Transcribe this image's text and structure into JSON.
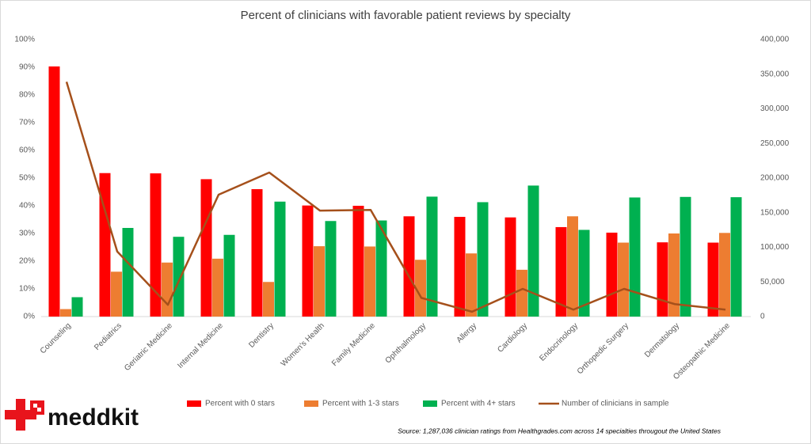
{
  "chart_data": {
    "type": "bar",
    "title": "Percent of clinicians with favorable patient reviews by specialty",
    "categories": [
      "Counseling",
      "Pediatrics",
      "Geriatric Medicine",
      "Internal Medicine",
      "Dentistry",
      "Women's Health",
      "Family Medicine",
      "Ophthalmology",
      "Allergy",
      "Cardiology",
      "Endocrinology",
      "Orthopedic Surgery",
      "Dermatology",
      "Osteopathic Medicine"
    ],
    "series": [
      {
        "name": "Percent with 0 stars",
        "color": "#ff0000",
        "values": [
          90.3,
          51.8,
          51.7,
          49.6,
          46.0,
          40.1,
          40.0,
          36.2,
          36.0,
          35.8,
          32.3,
          30.3,
          26.8,
          26.7
        ]
      },
      {
        "name": "Percent with 1-3 stars",
        "color": "#ed7d31",
        "values": [
          2.7,
          16.2,
          19.5,
          20.9,
          12.5,
          25.4,
          25.3,
          20.5,
          22.8,
          16.9,
          36.2,
          26.7,
          30.0,
          30.2
        ]
      },
      {
        "name": "Percent with 4+ stars",
        "color": "#00b050",
        "values": [
          7.0,
          32.0,
          28.8,
          29.5,
          41.5,
          34.5,
          34.7,
          43.3,
          41.3,
          47.3,
          31.3,
          43.0,
          43.2,
          43.1
        ]
      },
      {
        "name": "Number of clinicians in sample",
        "color": "#a5501b",
        "type": "line",
        "axis": "y2",
        "values": [
          339000,
          94000,
          17000,
          176000,
          208000,
          153000,
          154000,
          27000,
          7000,
          40000,
          10000,
          40000,
          18000,
          10000
        ]
      }
    ],
    "ylim": [
      0,
      100
    ],
    "yticks": [
      {
        "value": 0,
        "label": "0%"
      },
      {
        "value": 10,
        "label": "10%"
      },
      {
        "value": 20,
        "label": "20%"
      },
      {
        "value": 30,
        "label": "30%"
      },
      {
        "value": 40,
        "label": "40%"
      },
      {
        "value": 50,
        "label": "50%"
      },
      {
        "value": 60,
        "label": "60%"
      },
      {
        "value": 70,
        "label": "70%"
      },
      {
        "value": 80,
        "label": "80%"
      },
      {
        "value": 90,
        "label": "90%"
      },
      {
        "value": 100,
        "label": "100%"
      }
    ],
    "y2lim": [
      0,
      400000
    ],
    "y2ticks": [
      0,
      {
        "value": 50000,
        "label": "50,000"
      },
      {
        "value": 100000,
        "label": "100,000"
      },
      {
        "value": 150000,
        "label": "150,000"
      },
      {
        "value": 200000,
        "label": "200,000"
      },
      {
        "value": 250000,
        "label": "250,000"
      },
      {
        "value": 300000,
        "label": "300,000"
      },
      {
        "value": 350000,
        "label": "350,000"
      },
      {
        "value": 400000,
        "label": "400,000"
      }
    ],
    "grid": false,
    "legend": "bottom",
    "source": "Source: 1,287,036 clinician ratings from Healthgrades.com across 14 specialties througout the United States",
    "logo": "meddkit"
  }
}
